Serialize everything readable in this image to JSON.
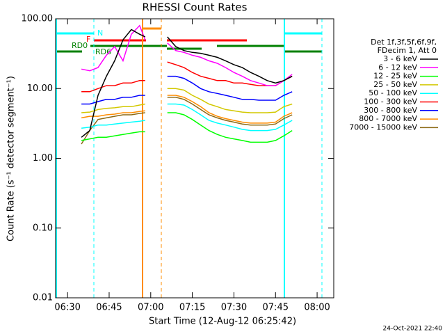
{
  "chart_data": {
    "type": "line",
    "title": "RHESSI Count Rates",
    "x_label": "Start Time (12-Aug-12 06:25:42)",
    "y_label": "Count Rate (s⁻¹ detector segment⁻¹)",
    "legend_header": [
      "Det 1f,3f,5f,6f,9f,",
      "FDecim 1, Att 0"
    ],
    "footer": "24-Oct-2021 22:40",
    "annotations": [
      "N",
      "F",
      "RD0",
      "RD6"
    ],
    "ylog": true,
    "grid": false,
    "legend": "right",
    "xlim": [
      "06:25:42",
      "08:06"
    ],
    "xticks": [
      "06:30",
      "06:45",
      "07:00",
      "07:15",
      "07:30",
      "07:45",
      "08:00"
    ],
    "ylim": [
      0.01,
      100
    ],
    "yticks": [
      {
        "value": 0.01,
        "label": "0.01"
      },
      {
        "value": 0.1,
        "label": "0.10"
      },
      {
        "value": 1,
        "label": "1.00"
      },
      {
        "value": 10,
        "label": "10.00"
      },
      {
        "value": 100,
        "label": "100.00"
      }
    ],
    "x": [
      "06:35",
      "06:38",
      "06:41",
      "06:44",
      "06:47",
      "06:50",
      "06:53",
      "06:56",
      "06:58",
      "07:02",
      "07:06",
      "07:09",
      "07:12",
      "07:15",
      "07:18",
      "07:21",
      "07:24",
      "07:27",
      "07:30",
      "07:33",
      "07:36",
      "07:39",
      "07:42",
      "07:45",
      "07:48",
      "07:51"
    ],
    "series": [
      {
        "name": "3 - 6 keV",
        "color": "#000000",
        "values": [
          2,
          2.5,
          8,
          15,
          25,
          50,
          70,
          60,
          55,
          null,
          55,
          40,
          35,
          33,
          32,
          30,
          28,
          25,
          22,
          20,
          17,
          15,
          13,
          12,
          13,
          15
        ]
      },
      {
        "name": "6 - 12 keV",
        "color": "#ff00ff",
        "values": [
          19,
          18,
          20,
          30,
          40,
          25,
          60,
          80,
          50,
          null,
          45,
          35,
          33,
          30,
          28,
          25,
          23,
          20,
          17,
          15,
          13,
          12,
          11,
          11,
          13,
          16
        ]
      },
      {
        "name": "12 - 25 keV",
        "color": "#00ff00",
        "values": [
          1.8,
          1.9,
          2,
          2,
          2.1,
          2.2,
          2.3,
          2.4,
          2.4,
          null,
          4.5,
          4.5,
          4.2,
          3.6,
          3,
          2.5,
          2.2,
          2,
          1.9,
          1.8,
          1.7,
          1.7,
          1.7,
          1.8,
          2.1,
          2.5
        ]
      },
      {
        "name": "25 - 50 keV",
        "color": "#d2c800",
        "values": [
          4.5,
          4.6,
          5,
          5.2,
          5.3,
          5.5,
          5.5,
          5.8,
          6,
          null,
          10,
          10,
          9.5,
          8,
          7,
          6,
          5.5,
          5,
          4.8,
          4.6,
          4.5,
          4.5,
          4.5,
          4.6,
          5.5,
          6
        ]
      },
      {
        "name": "50 - 100 keV",
        "color": "#00ffff",
        "values": [
          2.7,
          2.8,
          3,
          3,
          3.1,
          3.2,
          3.3,
          3.4,
          3.5,
          null,
          6,
          6,
          5.8,
          5,
          4.2,
          3.5,
          3.2,
          3,
          2.8,
          2.6,
          2.5,
          2.5,
          2.5,
          2.6,
          3,
          3.5
        ]
      },
      {
        "name": "100 - 300 keV",
        "color": "#ff0000",
        "values": [
          9,
          9,
          10,
          11,
          11,
          12,
          12,
          13,
          13,
          null,
          24,
          22,
          20,
          17,
          15,
          14,
          13,
          13,
          12,
          12,
          11.5,
          11,
          11,
          11,
          13,
          15
        ]
      },
      {
        "name": "300 - 800 keV",
        "color": "#0000ff",
        "values": [
          6,
          6,
          6.5,
          7,
          7,
          7.5,
          7.5,
          8,
          8,
          null,
          15,
          15,
          14,
          12,
          10,
          9,
          8.5,
          8,
          7.5,
          7,
          7,
          6.8,
          6.8,
          6.8,
          8,
          9
        ]
      },
      {
        "name": "800 - 7000 keV",
        "color": "#ff8c00",
        "values": [
          3.8,
          4,
          4,
          4.2,
          4.3,
          4.5,
          4.5,
          4.7,
          4.8,
          null,
          8,
          8,
          7.5,
          6.5,
          5.5,
          4.5,
          4,
          3.7,
          3.5,
          3.3,
          3.2,
          3.2,
          3.2,
          3.3,
          4,
          4.5
        ]
      },
      {
        "name": "7000 - 15000 keV",
        "color": "#8b6914",
        "values": [
          1.6,
          2.5,
          3.6,
          3.8,
          4,
          4.2,
          4.2,
          4.4,
          4.5,
          null,
          7.5,
          7.5,
          7,
          6,
          5,
          4.2,
          3.8,
          3.5,
          3.3,
          3.1,
          3,
          3,
          3,
          3.1,
          3.7,
          4.2
        ]
      }
    ]
  }
}
